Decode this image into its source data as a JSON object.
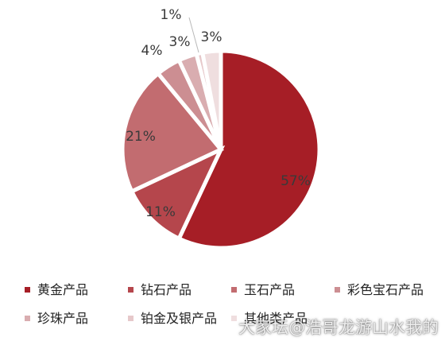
{
  "chart_data": {
    "type": "pie",
    "title": "",
    "slices": [
      {
        "label": "黄金产品",
        "value": 57,
        "display": "57%",
        "color": "#a61e26"
      },
      {
        "label": "钻石产品",
        "value": 11,
        "display": "11%",
        "color": "#b5464c"
      },
      {
        "label": "玉石产品",
        "value": 21,
        "display": "21%",
        "color": "#c26c70"
      },
      {
        "label": "彩色宝石产品",
        "value": 4,
        "display": "4%",
        "color": "#cc8e92"
      },
      {
        "label": "珍珠产品",
        "value": 3,
        "display": "3%",
        "color": "#d9adb0"
      },
      {
        "label": "铂金及银产品",
        "value": 1,
        "display": "1%",
        "color": "#e6c8ca"
      },
      {
        "label": "其他类产品",
        "value": 3,
        "display": "3%",
        "color": "#efdedf"
      }
    ],
    "legend_position": "bottom"
  },
  "watermark": "大家坛@浩哥龙游山水我的"
}
